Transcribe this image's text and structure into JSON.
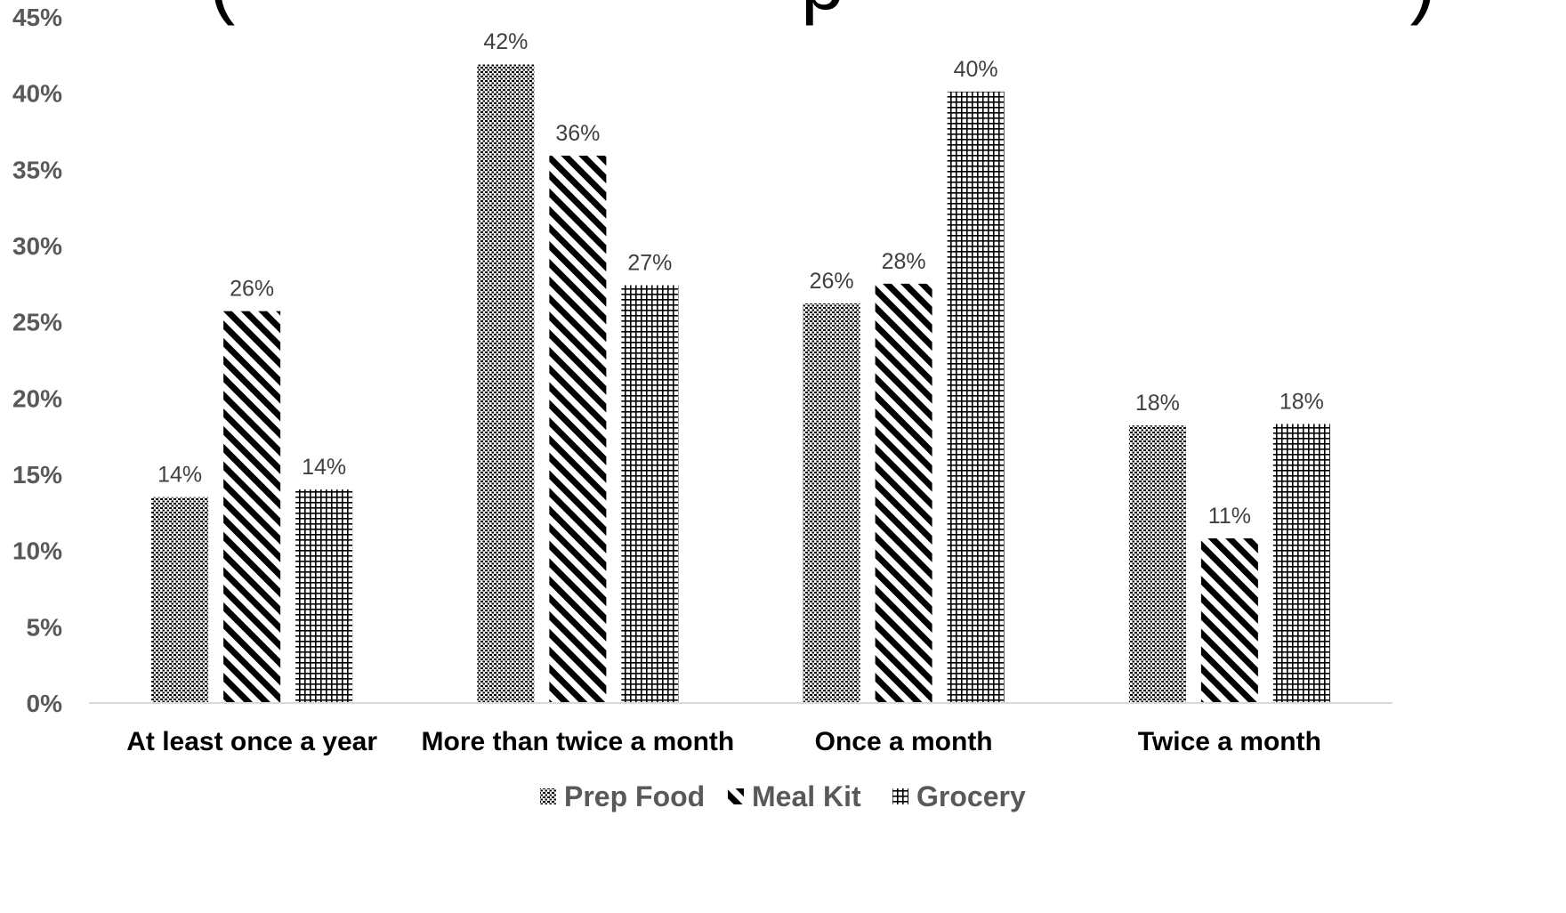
{
  "chart_data": {
    "type": "bar",
    "title": "(                          p                          )",
    "categories": [
      "At least once a year",
      "More than twice a month",
      "Once a month",
      "Twice a month"
    ],
    "series": [
      {
        "name": "Prep Food",
        "values": [
          13.5,
          41.9,
          26.2,
          18.2
        ],
        "labels": [
          "14%",
          "42%",
          "26%",
          "18%"
        ],
        "pattern": "dots"
      },
      {
        "name": "Meal Kit",
        "values": [
          25.7,
          35.9,
          27.5,
          10.8
        ],
        "labels": [
          "26%",
          "36%",
          "28%",
          "11%"
        ],
        "pattern": "diagonal"
      },
      {
        "name": "Grocery",
        "values": [
          14.0,
          27.4,
          40.1,
          18.3
        ],
        "labels": [
          "14%",
          "27%",
          "40%",
          "18%"
        ],
        "pattern": "grid"
      }
    ],
    "ylim": [
      0,
      45
    ],
    "yticks": [
      0,
      5,
      10,
      15,
      20,
      25,
      30,
      35,
      40,
      45
    ],
    "ytick_labels": [
      "0%",
      "5%",
      "10%",
      "15%",
      "20%",
      "25%",
      "30%",
      "35%",
      "40%",
      "45%"
    ],
    "xlabel": "",
    "ylabel": "",
    "grid": false,
    "legend_position": "bottom",
    "colors": {
      "ink": "#000000",
      "axis": "#d9d9d9",
      "tick_text": "#595959",
      "data_label_text": "#404040"
    }
  }
}
